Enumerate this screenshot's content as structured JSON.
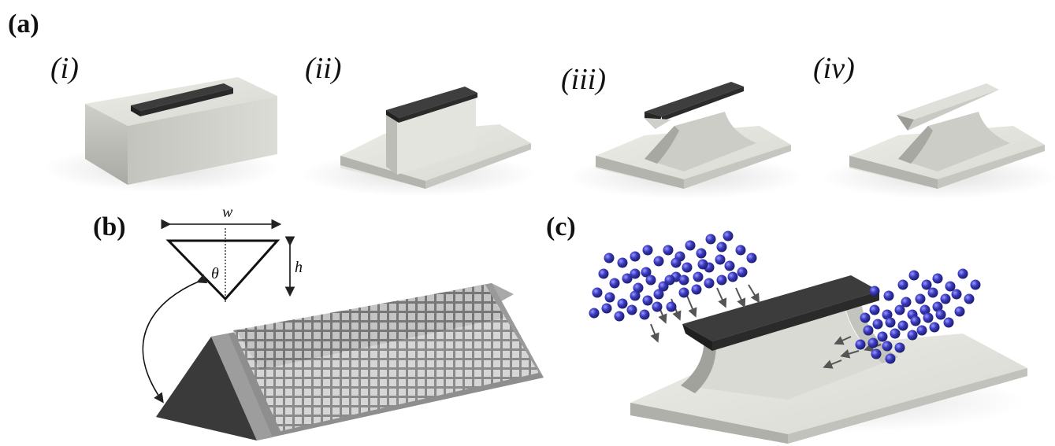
{
  "panels": {
    "a": {
      "label": "(a)"
    },
    "b": {
      "label": "(b)"
    },
    "c": {
      "label": "(c)"
    }
  },
  "steps": [
    {
      "label": "(i)"
    },
    {
      "label": "(ii)"
    },
    {
      "label": "(iii)"
    },
    {
      "label": "(iv)"
    }
  ],
  "dimensions": {
    "width_symbol": "w",
    "height_symbol": "h",
    "angle_symbol": "θ",
    "angle_on_prism": "θ)"
  },
  "colors": {
    "substrate_top": "#e6e6e0",
    "substrate_side": "#c8c8c2",
    "mask": "#303030",
    "mask_top": "#3e3e3e",
    "particles": "#3030a8",
    "prism_face": "#3a3a3a"
  }
}
